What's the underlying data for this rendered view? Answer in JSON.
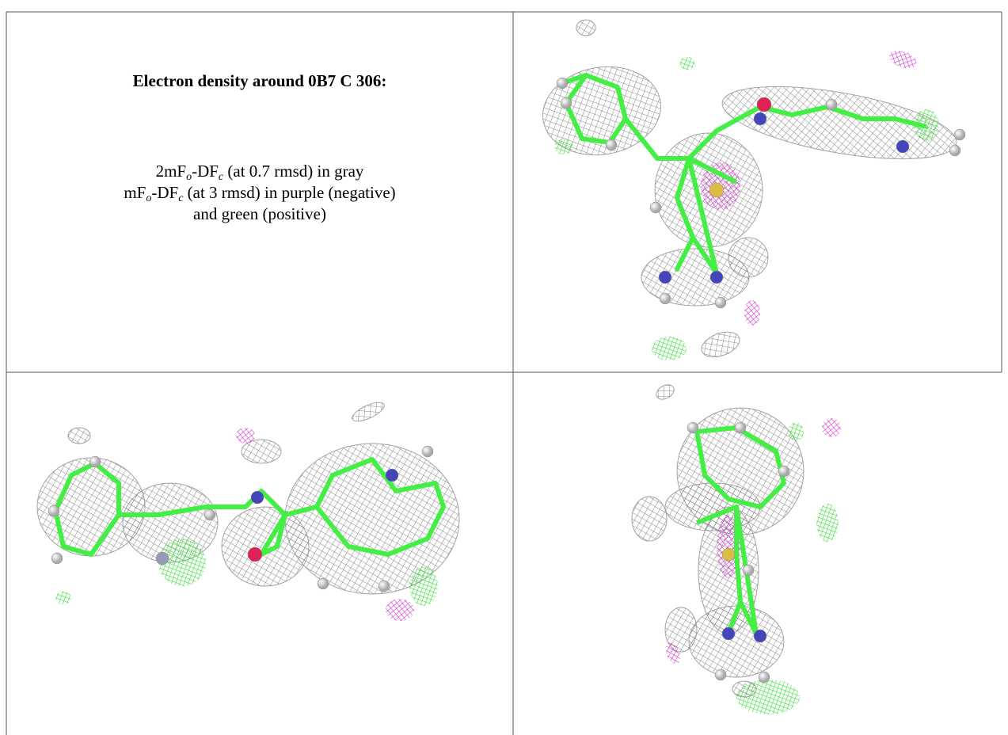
{
  "header": {
    "title": "Electron density around 0B7 C 306:"
  },
  "legend": {
    "line1": [
      "2mF",
      "o",
      "-DF",
      "c",
      " (at 0.7 rmsd) in gray"
    ],
    "line2": [
      "mF",
      "o",
      "-DF",
      "c",
      " (at 3 rmsd) in purple (negative)"
    ],
    "line3": "and green (positive)"
  }
}
